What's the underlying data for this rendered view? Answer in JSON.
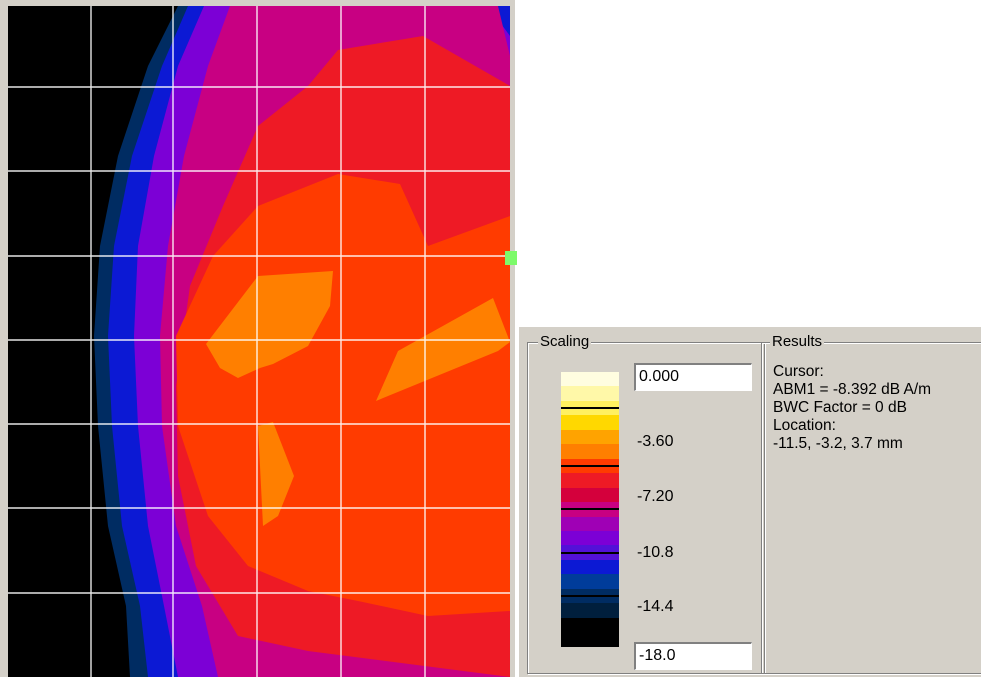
{
  "plot": {
    "gridlines": "#ffffff",
    "cursor_marker_color": "#7dfa6a"
  },
  "scaling": {
    "title": "Scaling",
    "max_value": "0.000",
    "min_value": "-18.0",
    "labels": [
      "-3.60",
      "-7.20",
      "-10.8",
      "-14.4"
    ],
    "colorbar": {
      "colors": [
        "#fffde0",
        "#fff8a8",
        "#fff060",
        "#ffd800",
        "#ffa300",
        "#ff7f00",
        "#ff3b00",
        "#ee1a25",
        "#d4003c",
        "#c80082",
        "#9f00b5",
        "#7c00d6",
        "#5311d8",
        "#0c19d4",
        "#003c9a",
        "#002c62",
        "#001f3d",
        "#000000",
        "#000000"
      ],
      "tick_after_band": [
        2,
        6,
        9,
        12,
        15
      ]
    }
  },
  "results": {
    "title": "Results",
    "lines": [
      "Cursor:",
      "ABM1 = -8.392 dB A/m",
      "BWC Factor = 0 dB",
      "Location:",
      "-11.5, -3.2, 3.7 mm"
    ]
  }
}
